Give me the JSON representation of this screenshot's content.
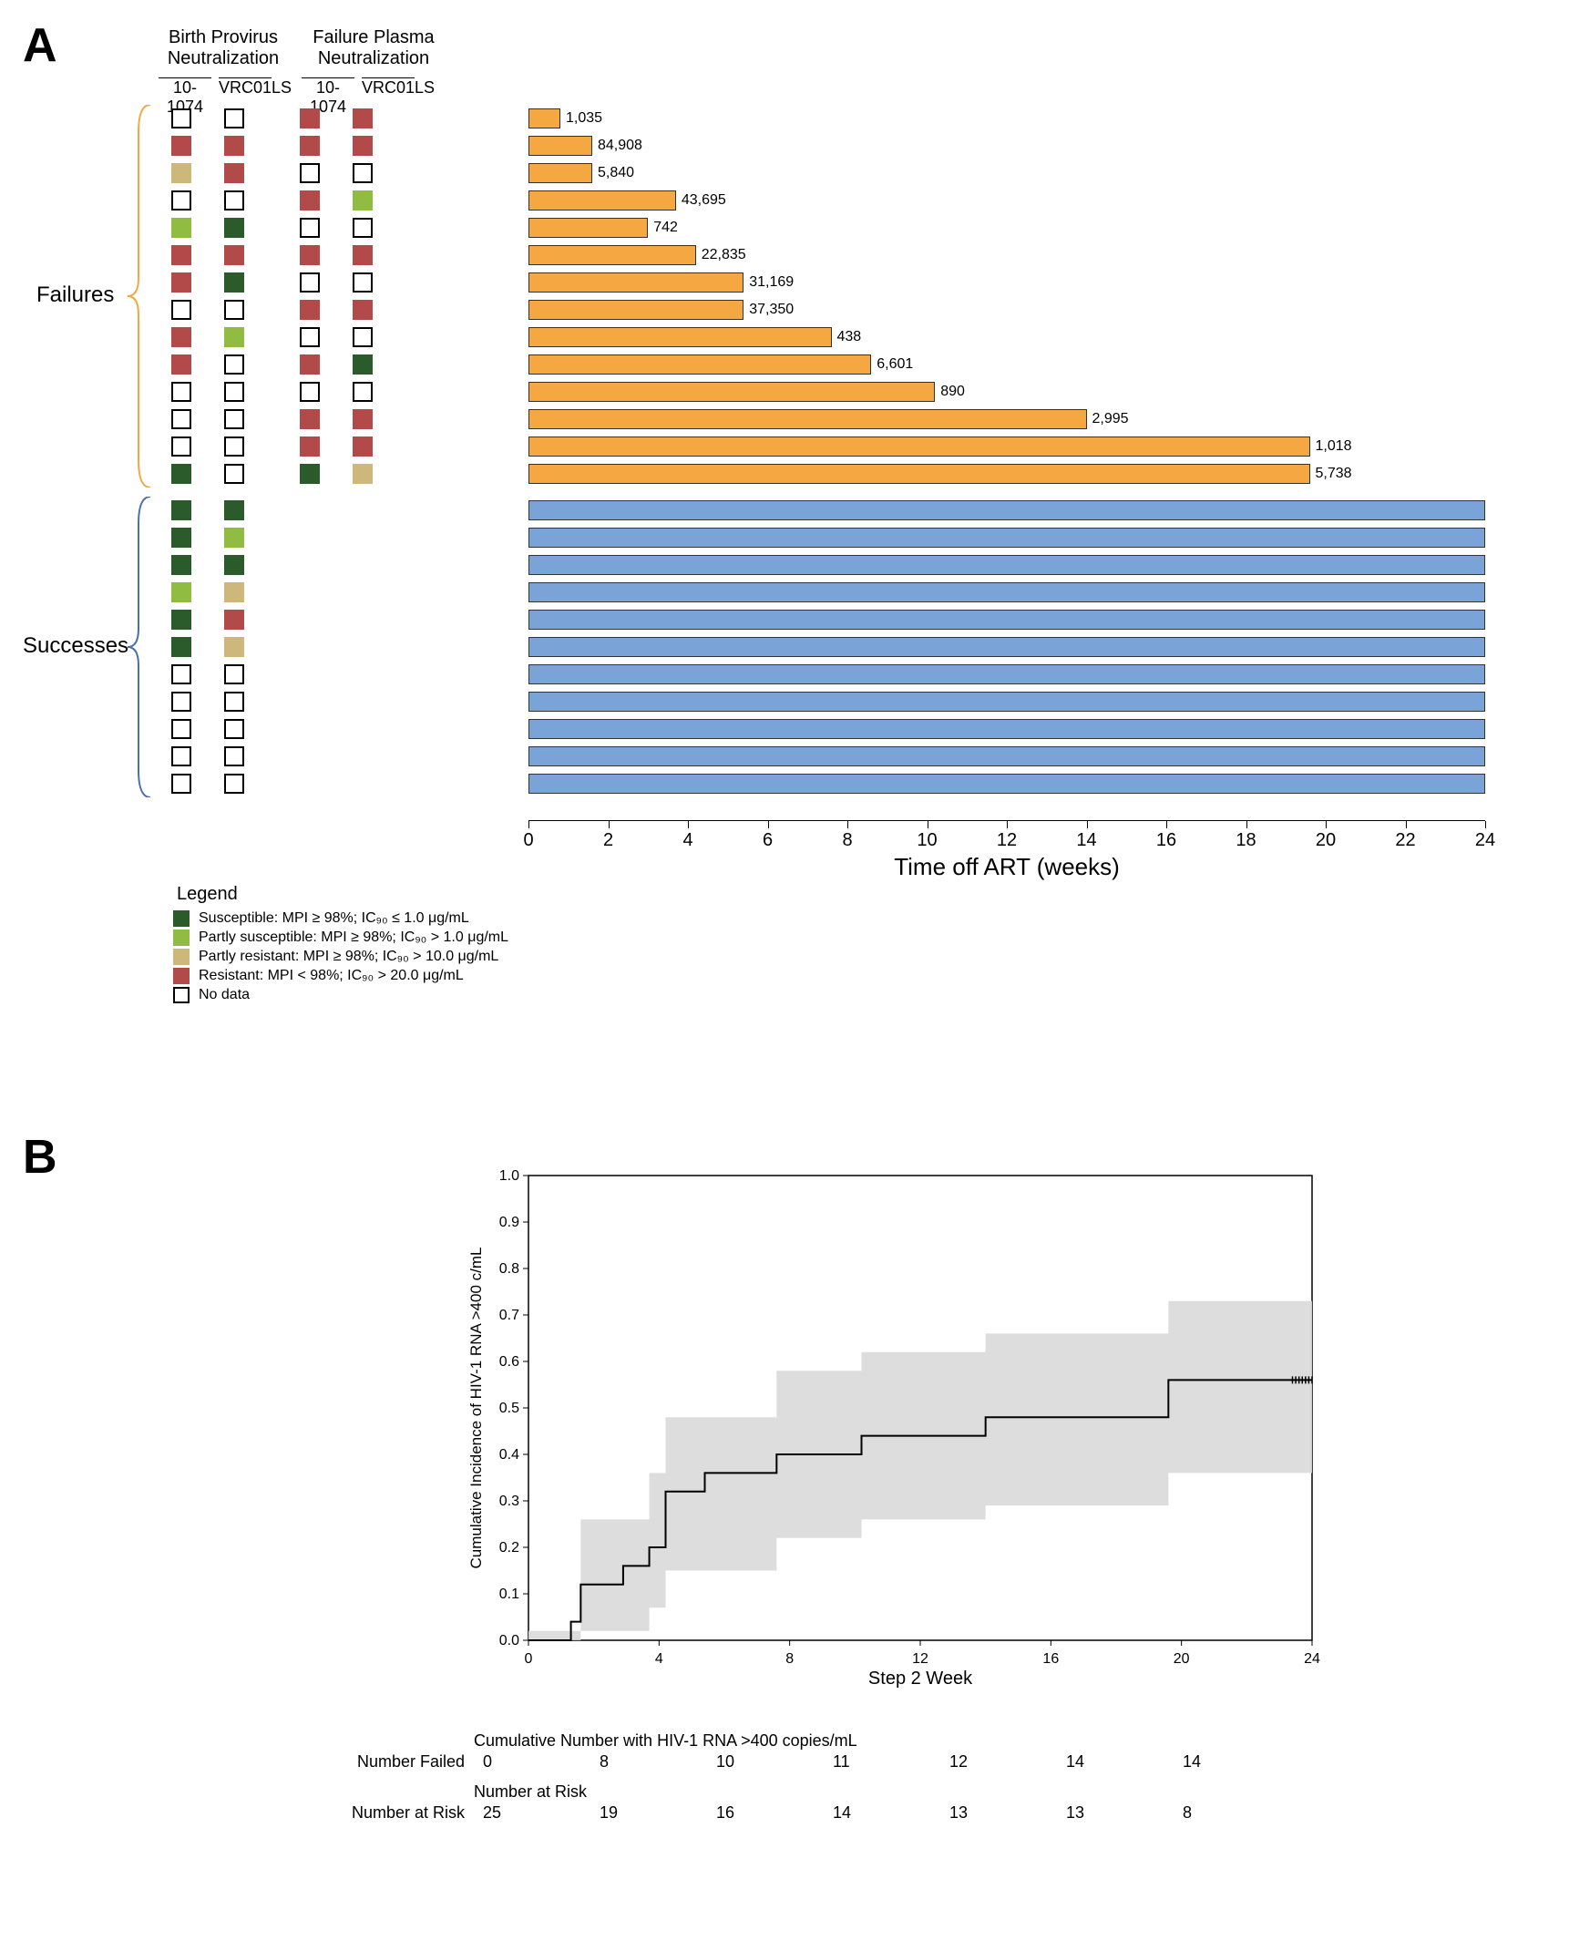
{
  "panelA": {
    "label": "A",
    "header_birth": "Birth Provirus\nNeutralization",
    "header_failure": "Failure Plasma\nNeutralization",
    "col_labels": [
      "10-1074",
      "VRC01LS",
      "10-1074",
      "VRC01LS"
    ],
    "side_failures": "Failures",
    "side_successes": "Successes",
    "colors": {
      "susceptible": "#2b5a2b",
      "partly_susceptible": "#8fbc41",
      "partly_resistant": "#cdb77a",
      "resistant": "#b24a4a",
      "no_data": "#ffffff",
      "bar_failure": "#f5a742",
      "bar_success": "#7aa3d8"
    },
    "failures": [
      {
        "cells": [
          "empty",
          "empty",
          "red",
          "red"
        ],
        "weeks": 0.8,
        "label": "1,035"
      },
      {
        "cells": [
          "red",
          "red",
          "red",
          "red"
        ],
        "weeks": 1.6,
        "label": "84,908"
      },
      {
        "cells": [
          "tan",
          "red",
          "empty",
          "empty"
        ],
        "weeks": 1.6,
        "label": "5,840"
      },
      {
        "cells": [
          "empty",
          "empty",
          "red",
          "lgreen"
        ],
        "weeks": 3.7,
        "label": "43,695"
      },
      {
        "cells": [
          "lgreen",
          "dgreen",
          "empty",
          "empty"
        ],
        "weeks": 3.0,
        "label": "742"
      },
      {
        "cells": [
          "red",
          "red",
          "red",
          "red"
        ],
        "weeks": 4.2,
        "label": "22,835"
      },
      {
        "cells": [
          "red",
          "dgreen",
          "empty",
          "empty"
        ],
        "weeks": 5.4,
        "label": "31,169"
      },
      {
        "cells": [
          "empty",
          "empty",
          "red",
          "red"
        ],
        "weeks": 5.4,
        "label": "37,350"
      },
      {
        "cells": [
          "red",
          "lgreen",
          "empty",
          "empty"
        ],
        "weeks": 7.6,
        "label": "438"
      },
      {
        "cells": [
          "red",
          "empty",
          "red",
          "dgreen"
        ],
        "weeks": 8.6,
        "label": "6,601"
      },
      {
        "cells": [
          "empty",
          "empty",
          "empty",
          "empty"
        ],
        "weeks": 10.2,
        "label": "890"
      },
      {
        "cells": [
          "empty",
          "empty",
          "red",
          "red"
        ],
        "weeks": 14.0,
        "label": "2,995"
      },
      {
        "cells": [
          "empty",
          "empty",
          "red",
          "red"
        ],
        "weeks": 19.6,
        "label": "1,018"
      },
      {
        "cells": [
          "dgreen",
          "empty",
          "dgreen",
          "tan"
        ],
        "weeks": 19.6,
        "label": "5,738"
      }
    ],
    "successes": [
      {
        "cells": [
          "dgreen",
          "dgreen"
        ],
        "weeks": 24
      },
      {
        "cells": [
          "dgreen",
          "lgreen"
        ],
        "weeks": 24
      },
      {
        "cells": [
          "dgreen",
          "dgreen"
        ],
        "weeks": 24
      },
      {
        "cells": [
          "lgreen",
          "tan"
        ],
        "weeks": 24
      },
      {
        "cells": [
          "dgreen",
          "red"
        ],
        "weeks": 24
      },
      {
        "cells": [
          "dgreen",
          "tan"
        ],
        "weeks": 24
      },
      {
        "cells": [
          "empty",
          "empty"
        ],
        "weeks": 24
      },
      {
        "cells": [
          "empty",
          "empty"
        ],
        "weeks": 24
      },
      {
        "cells": [
          "empty",
          "empty"
        ],
        "weeks": 24
      },
      {
        "cells": [
          "empty",
          "empty"
        ],
        "weeks": 24
      },
      {
        "cells": [
          "empty",
          "empty"
        ],
        "weeks": 24
      }
    ],
    "x_axis": {
      "title": "Time off ART (weeks)",
      "ticks": [
        0,
        2,
        4,
        6,
        8,
        10,
        12,
        14,
        16,
        18,
        20,
        22,
        24
      ]
    },
    "legend": {
      "title": "Legend",
      "items": [
        {
          "class": "sq-dgreen",
          "text": "Susceptible: MPI ≥ 98%; IC₉₀ ≤ 1.0 μg/mL"
        },
        {
          "class": "sq-lgreen",
          "text": "Partly susceptible: MPI ≥ 98%; IC₉₀ > 1.0 μg/mL"
        },
        {
          "class": "sq-tan",
          "text": "Partly resistant: MPI ≥ 98%; IC₉₀ > 10.0 μg/mL"
        },
        {
          "class": "sq-red",
          "text": "Resistant: MPI < 98%; IC₉₀ > 20.0 μg/mL"
        },
        {
          "class": "sq-empty",
          "text": "No data"
        }
      ]
    }
  },
  "panelB": {
    "label": "B",
    "chart": {
      "y_label": "Cumulative Incidence of HIV-1 RNA >400 c/mL",
      "x_label": "Step 2 Week",
      "y_ticks": [
        "0.0",
        "0.1",
        "0.2",
        "0.3",
        "0.4",
        "0.5",
        "0.6",
        "0.7",
        "0.8",
        "0.9",
        "1.0"
      ],
      "x_ticks": [
        0,
        4,
        8,
        12,
        16,
        20,
        24
      ],
      "step_points": [
        [
          0,
          0
        ],
        [
          1.3,
          0.04
        ],
        [
          1.6,
          0.12
        ],
        [
          2.9,
          0.16
        ],
        [
          3.7,
          0.2
        ],
        [
          4.2,
          0.32
        ],
        [
          5.4,
          0.36
        ],
        [
          7.6,
          0.4
        ],
        [
          8.6,
          0.4
        ],
        [
          10.2,
          0.44
        ],
        [
          14.0,
          0.48
        ],
        [
          19.6,
          0.56
        ],
        [
          24,
          0.56
        ]
      ],
      "ci_upper": [
        [
          0,
          0.02
        ],
        [
          1.6,
          0.26
        ],
        [
          3.7,
          0.36
        ],
        [
          4.2,
          0.48
        ],
        [
          7.6,
          0.58
        ],
        [
          10.2,
          0.62
        ],
        [
          14.0,
          0.66
        ],
        [
          19.6,
          0.73
        ],
        [
          24,
          0.73
        ]
      ],
      "ci_lower": [
        [
          0,
          0
        ],
        [
          1.6,
          0.02
        ],
        [
          3.7,
          0.07
        ],
        [
          4.2,
          0.15
        ],
        [
          7.6,
          0.22
        ],
        [
          10.2,
          0.26
        ],
        [
          14.0,
          0.29
        ],
        [
          19.6,
          0.36
        ],
        [
          24,
          0.36
        ]
      ],
      "ci_color": "#d9d9d9"
    },
    "risk_table": {
      "header1": "Cumulative Number with HIV-1 RNA >400 copies/mL",
      "row1_label": "Number Failed",
      "row1_vals": [
        "0",
        "8",
        "10",
        "11",
        "12",
        "14",
        "14"
      ],
      "header2": "Number at Risk",
      "row2_label": "Number at Risk",
      "row2_vals": [
        "25",
        "19",
        "16",
        "14",
        "13",
        "13",
        "8"
      ]
    }
  }
}
